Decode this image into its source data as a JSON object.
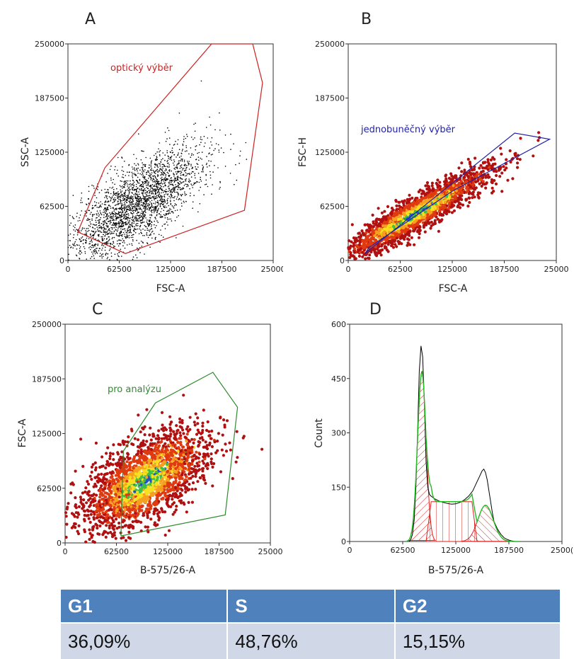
{
  "chart_data": [
    {
      "panel": "A",
      "type": "scatter",
      "xlabel": "FSC-A",
      "ylabel": "SSC-A",
      "xlim": [
        0,
        250000
      ],
      "ylim": [
        0,
        250000
      ],
      "xticks": [
        "0",
        "62500",
        "125000",
        "187500",
        "25000"
      ],
      "yticks": [
        "0",
        "62500",
        "125000",
        "187500",
        "250000"
      ],
      "point_color": "#000000",
      "gate_color": "#cc2222",
      "gate_label": "optický výběr",
      "gate_polygon": [
        [
          12000,
          33000
        ],
        [
          45000,
          107000
        ],
        [
          175000,
          250000
        ],
        [
          225000,
          250000
        ],
        [
          237000,
          205000
        ],
        [
          215000,
          58000
        ],
        [
          70000,
          8000
        ],
        [
          12000,
          33000
        ]
      ],
      "population": {
        "center": [
          70000,
          55000
        ],
        "spread": [
          50000,
          40000
        ],
        "correlation": 0.7
      }
    },
    {
      "panel": "B",
      "type": "scatter",
      "xlabel": "FSC-A",
      "ylabel": "FSC-H",
      "xlim": [
        0,
        250000
      ],
      "ylim": [
        0,
        250000
      ],
      "xticks": [
        "0",
        "62500",
        "125000",
        "187500",
        "25000"
      ],
      "yticks": [
        "0",
        "62500",
        "125000",
        "187500",
        "250000"
      ],
      "density_colors": [
        "#b01010",
        "#e03a10",
        "#f6a020",
        "#f8e020",
        "#40c040",
        "#2050d0"
      ],
      "gate_color": "#2222aa",
      "gate_label": "jednobuněčný výběr",
      "gate_polygon": [
        [
          20000,
          8000
        ],
        [
          200000,
          147000
        ],
        [
          242000,
          140000
        ],
        [
          125000,
          80000
        ],
        [
          25000,
          15000
        ],
        [
          20000,
          8000
        ]
      ],
      "population": {
        "center": [
          65000,
          45000
        ],
        "spread": [
          55000,
          33000
        ],
        "correlation": 0.92
      }
    },
    {
      "panel": "C",
      "type": "scatter",
      "xlabel": "B-575/26-A",
      "ylabel": "FSC-A",
      "xlim": [
        0,
        250000
      ],
      "ylim": [
        0,
        250000
      ],
      "xticks": [
        "0",
        "62500",
        "125000",
        "187500",
        "25000"
      ],
      "yticks": [
        "0",
        "62500",
        "125000",
        "187500",
        "250000"
      ],
      "density_colors": [
        "#b01010",
        "#e03a10",
        "#f6a020",
        "#f8e020",
        "#40c040",
        "#2050d0"
      ],
      "gate_color": "#2e8b2e",
      "gate_label": "pro analýzu",
      "gate_polygon": [
        [
          68000,
          8000
        ],
        [
          71000,
          105000
        ],
        [
          110000,
          160000
        ],
        [
          180000,
          195000
        ],
        [
          210000,
          155000
        ],
        [
          195000,
          32000
        ],
        [
          68000,
          8000
        ]
      ],
      "population": {
        "center": [
          85000,
          62000
        ],
        "spread": [
          45000,
          35000
        ],
        "correlation": 0.55
      }
    },
    {
      "panel": "D",
      "type": "area",
      "xlabel": "B-575/26-A",
      "ylabel": "Count",
      "xlim": [
        0,
        250000
      ],
      "ylim": [
        0,
        600
      ],
      "xticks": [
        "0",
        "62500",
        "125000",
        "187500",
        "2500("
      ],
      "yticks": [
        "0",
        "150",
        "300",
        "450",
        "600"
      ],
      "histogram": {
        "x": [
          70000,
          72000,
          74000,
          76000,
          78000,
          80000,
          82000,
          84000,
          86000,
          88000,
          90000,
          92000,
          94000,
          96000,
          100000,
          105000,
          110000,
          115000,
          120000,
          125000,
          130000,
          135000,
          140000,
          145000,
          150000,
          153000,
          156000,
          158000,
          160000,
          162000,
          164000,
          166000,
          168000,
          170000,
          174000,
          178000,
          182000,
          186000,
          190000,
          195000
        ],
        "y": [
          0,
          5,
          20,
          60,
          150,
          300,
          470,
          540,
          510,
          380,
          220,
          150,
          130,
          125,
          118,
          112,
          108,
          105,
          103,
          104,
          108,
          115,
          125,
          140,
          165,
          180,
          195,
          200,
          190,
          170,
          140,
          110,
          80,
          55,
          35,
          20,
          10,
          5,
          2,
          0
        ]
      },
      "fit_color": "#22bb22",
      "hatch_color": "#dd2222",
      "components": [
        {
          "name": "G1",
          "center": 85000,
          "height": 470,
          "width": 5000
        },
        {
          "name": "S",
          "from": 90000,
          "to": 150000,
          "height": 110
        },
        {
          "name": "G2",
          "center": 160000,
          "height": 100,
          "width": 9000
        }
      ]
    }
  ],
  "labels": {
    "A": "A",
    "B": "B",
    "C": "C",
    "D": "D"
  },
  "table": {
    "headers": [
      "G1",
      "S",
      "G2"
    ],
    "values": [
      "36,09%",
      "48,76%",
      "15,15%"
    ]
  }
}
